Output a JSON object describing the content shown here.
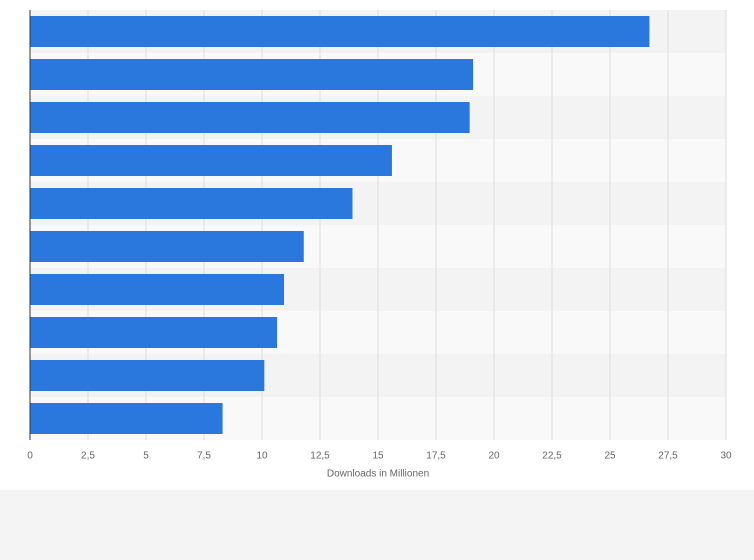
{
  "chart_data": {
    "type": "barh",
    "xlabel": "Downloads in Millionen",
    "categories": [
      null,
      null,
      null,
      null,
      null,
      null,
      null,
      null,
      null,
      null
    ],
    "values": [
      26.7,
      19.1,
      18.95,
      15.6,
      13.9,
      11.8,
      10.95,
      10.65,
      10.1,
      8.3
    ],
    "color": "#2a77dd",
    "xlim": [
      0,
      30
    ],
    "xticks": [
      0,
      {
        "value": 2.5,
        "label": "2,5"
      },
      5,
      {
        "value": 7.5,
        "label": "7,5"
      },
      10,
      {
        "value": 12.5,
        "label": "12,5"
      },
      15,
      {
        "value": 17.5,
        "label": "17,5"
      },
      20,
      {
        "value": 22.5,
        "label": "22,5"
      },
      25,
      {
        "value": 27.5,
        "label": "27,5"
      },
      30
    ],
    "grid": true
  }
}
